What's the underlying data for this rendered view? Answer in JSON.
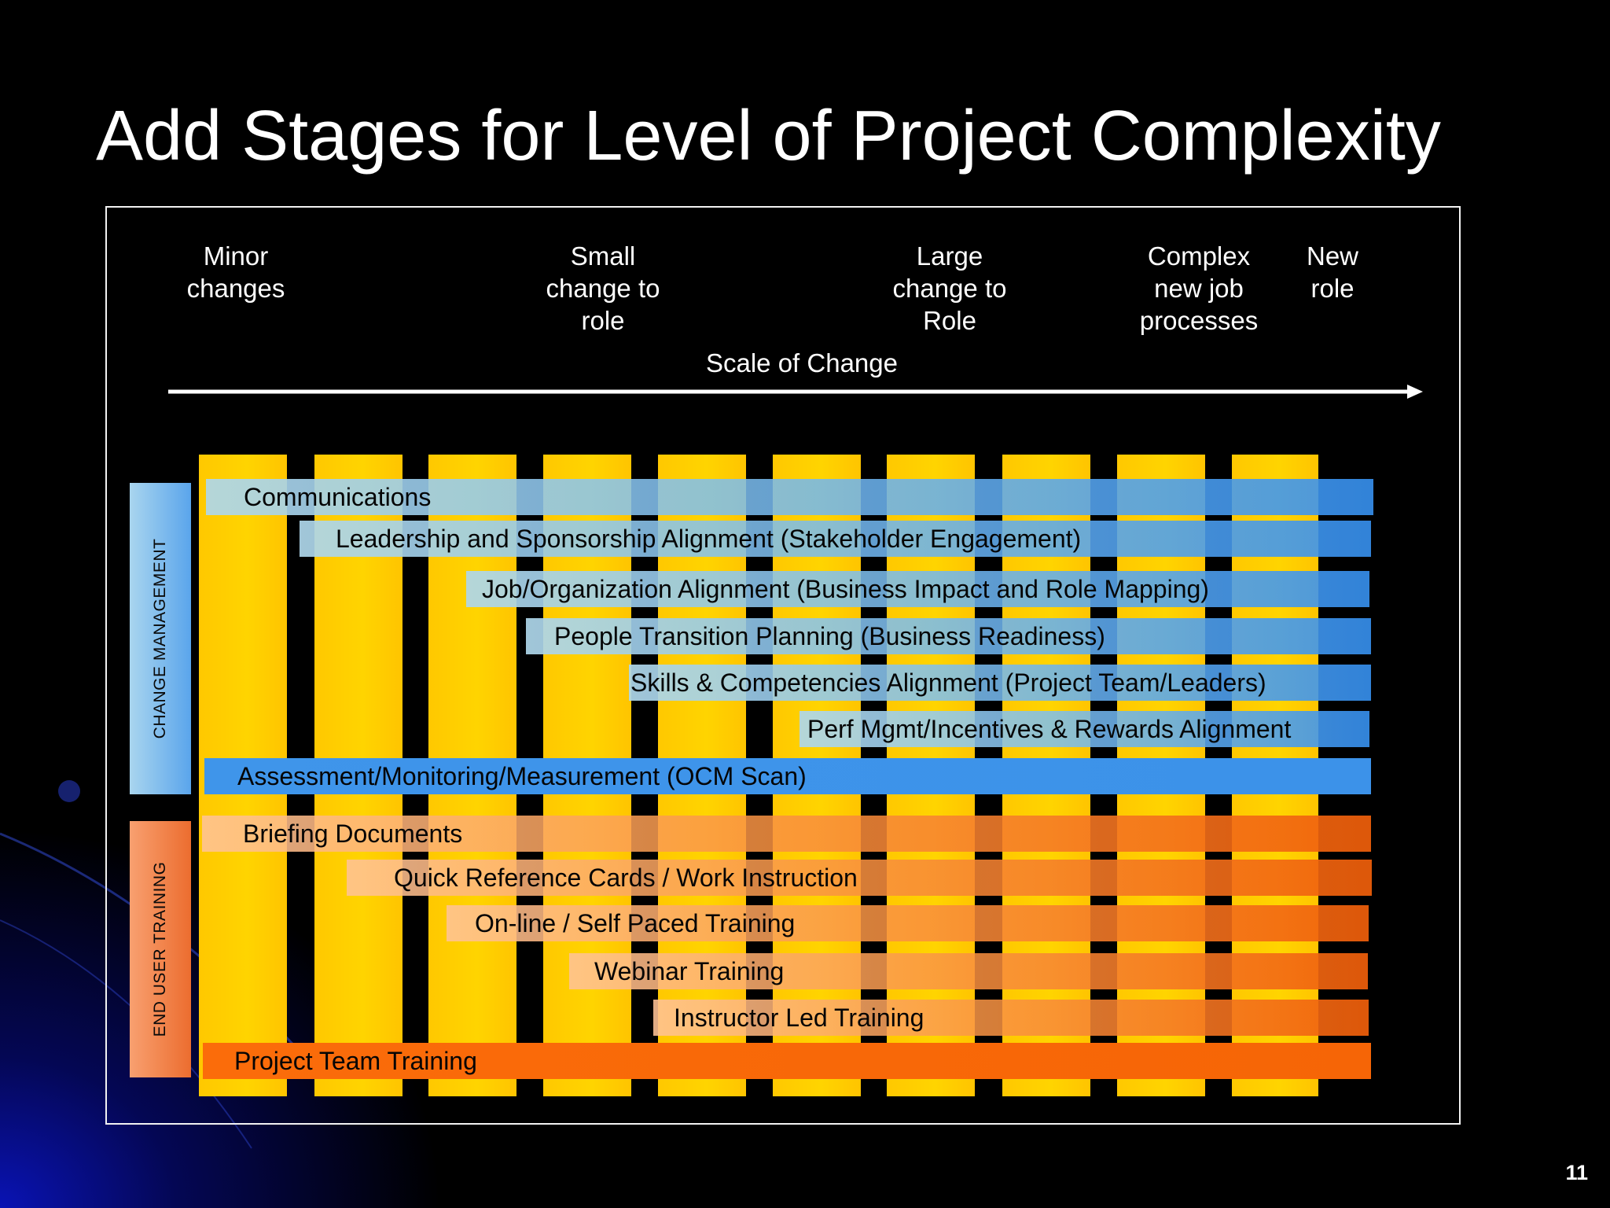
{
  "slide": {
    "title": "Add Stages for Level of Project Complexity",
    "page_number": "11"
  },
  "scale": {
    "label": "Scale of Change",
    "stages": [
      {
        "label": "Minor\nchanges"
      },
      {
        "label": "Small\nchange to\nrole"
      },
      {
        "label": "Large\nchange to\nRole"
      },
      {
        "label": "Complex\nnew job\nprocesses"
      },
      {
        "label": "New\nrole"
      }
    ]
  },
  "groups": {
    "change_management": "CHANGE MANAGEMENT",
    "end_user_training": "END USER TRAINING"
  },
  "change_management_items": [
    "Communications",
    "Leadership and Sponsorship Alignment (Stakeholder Engagement)",
    "Job/Organization Alignment (Business Impact and Role Mapping)",
    "People Transition Planning (Business Readiness)",
    "Skills & Competencies Alignment (Project Team/Leaders)",
    "Perf Mgmt/Incentives & Rewards Alignment",
    "Assessment/Monitoring/Measurement (OCM Scan)"
  ],
  "end_user_training_items": [
    "Briefing Documents",
    "Quick Reference Cards / Work Instruction",
    "On-line / Self Paced Training",
    "Webinar Training",
    "Instructor Led Training",
    "Project Team Training"
  ],
  "colors": {
    "background": "#000000",
    "column_yellow": "#ffcc00",
    "change_management_blue": "#3f95ea",
    "end_user_training_orange": "#f66506"
  }
}
